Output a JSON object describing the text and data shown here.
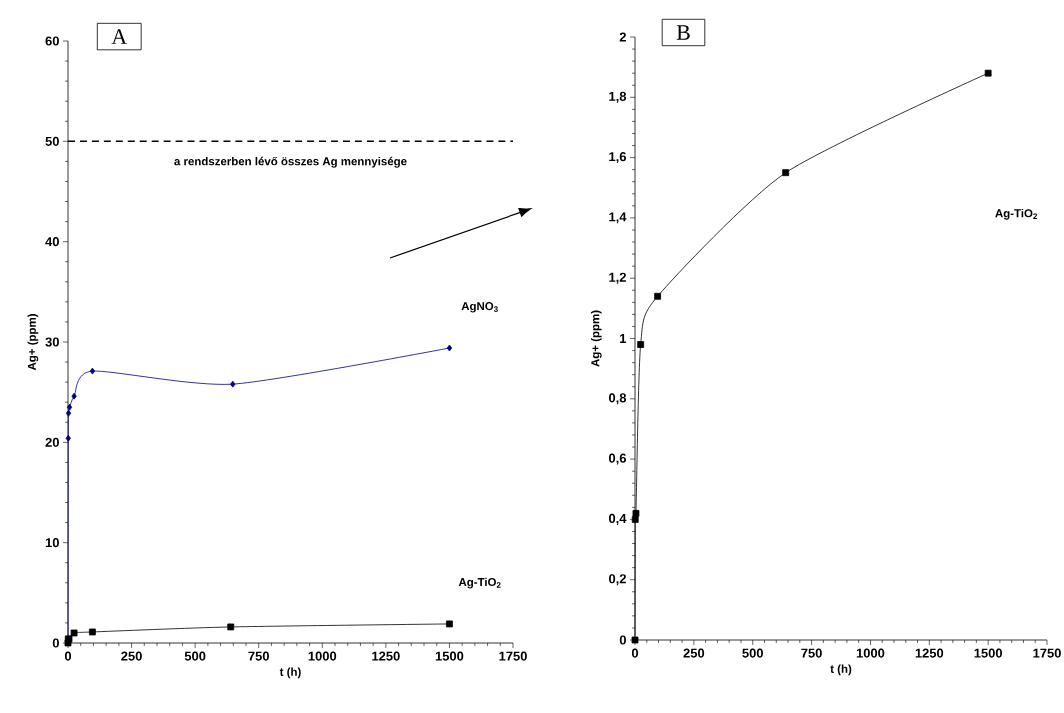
{
  "chart_data": [
    {
      "type": "line",
      "xlabel": "t (h)",
      "ylabel": "Ag+ (ppm)",
      "annotations": [
        "A"
      ],
      "xlim": [
        0,
        1750
      ],
      "xticks": [
        0,
        250,
        500,
        750,
        1000,
        1250,
        1500,
        1750
      ],
      "ylim": [
        0,
        60
      ],
      "yticks": [
        0,
        10,
        20,
        30,
        40,
        50,
        60
      ],
      "ref_lines": [
        {
          "axis": "y",
          "value": 50,
          "label": "a rendszerben lévő összes Ag mennyisége",
          "color": "#000000",
          "line_style": "dashed"
        }
      ],
      "series": [
        {
          "name": "AgNO$_{3}$",
          "color": "#000080",
          "marker": "diamond",
          "x": [
            0,
            1,
            2,
            6,
            24,
            96,
            648,
            1500
          ],
          "values": [
            0,
            20.4,
            22.9,
            23.5,
            24.6,
            27.1,
            25.8,
            29.4
          ]
        },
        {
          "name": "Ag-TiO$_{2}$",
          "color": "#000000",
          "marker": "square",
          "x": [
            0,
            1,
            4,
            24,
            96,
            640,
            1500
          ],
          "values": [
            0,
            0.4,
            0.4,
            1.0,
            1.1,
            1.6,
            1.9
          ]
        }
      ]
    },
    {
      "type": "line",
      "xlabel": "t (h)",
      "ylabel": "Ag+ (ppm)",
      "annotations": [
        "B"
      ],
      "xlim": [
        0,
        1750
      ],
      "xticks": [
        0,
        250,
        500,
        750,
        1000,
        1250,
        1500,
        1750
      ],
      "ylim": [
        0,
        2
      ],
      "yticks": [
        0,
        {
          "value": 0.2,
          "label": "0,2"
        },
        {
          "value": 0.4,
          "label": "0,4"
        },
        {
          "value": 0.6,
          "label": "0,6"
        },
        {
          "value": 0.8,
          "label": "0,8"
        },
        1,
        {
          "value": 1.2,
          "label": "1,2"
        },
        {
          "value": 1.4,
          "label": "1,4"
        },
        {
          "value": 1.6,
          "label": "1,6"
        },
        {
          "value": 1.8,
          "label": "1,8"
        },
        2
      ],
      "series": [
        {
          "name": "Ag-TiO$_{2}$",
          "color": "#000000",
          "marker": "square",
          "x": [
            0,
            1,
            4,
            24,
            96,
            640,
            1500
          ],
          "values": [
            0,
            0.4,
            0.42,
            0.98,
            1.14,
            1.55,
            1.88
          ]
        }
      ]
    }
  ]
}
